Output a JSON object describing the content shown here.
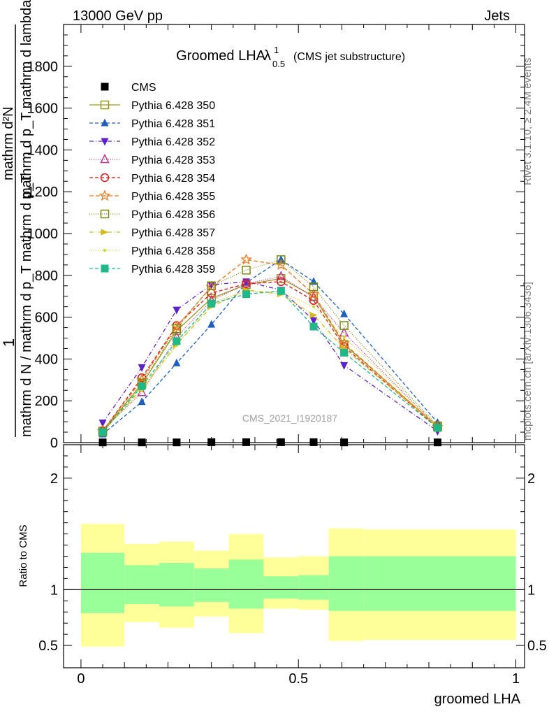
{
  "header": {
    "left": "13000 GeV pp",
    "right": "Jets"
  },
  "side_labels": {
    "rivet": "Rivet 3.1.10, ≥ 2.4M events",
    "mcplots": "mcplots.cern.ch [arXiv:1306.3436]"
  },
  "watermark": "CMS_2021_I1920187",
  "chart_data": [
    {
      "type": "line",
      "title": "Groomed LHA",
      "title_symbol": "λ",
      "title_sup": "1",
      "title_sub": "0.5",
      "subtitle": "(CMS jet substructure)",
      "ylabel_numerator": "mathrm d²N",
      "ylabel_denominator": "mathrm d p_T mathrm d lambda",
      "ylabel_one": "1",
      "ylabel_inner": "mathrm d N / mathrm d p_T mathrm d p_T",
      "xlim": [
        0,
        1
      ],
      "ylim": [
        0,
        2000
      ],
      "yticks": [
        0,
        200,
        400,
        600,
        800,
        1000,
        1200,
        1400,
        1600,
        1800
      ],
      "ytick_labels": [
        "0",
        "200",
        "400",
        "600",
        "800",
        "1000",
        "1200",
        "1400",
        "1600",
        "1800"
      ],
      "legend_position": "top-left",
      "x": [
        0.05,
        0.14,
        0.22,
        0.3,
        0.38,
        0.46,
        0.535,
        0.605,
        0.82
      ],
      "series": [
        {
          "name": "CMS",
          "color": "#000000",
          "dash": "none",
          "marker": "square-filled",
          "values": [
            1,
            1,
            1,
            2,
            2,
            2,
            2,
            1,
            1
          ]
        },
        {
          "name": "Pythia 6.428 350",
          "color": "#9a9a1a",
          "dash": "none",
          "marker": "square-open",
          "values": [
            55,
            280,
            535,
            690,
            755,
            785,
            700,
            470,
            75
          ]
        },
        {
          "name": "Pythia 6.428 351",
          "color": "#1f5fc0",
          "dash": "5,3",
          "marker": "triangle-up-filled",
          "values": [
            40,
            195,
            380,
            565,
            765,
            875,
            770,
            615,
            95
          ]
        },
        {
          "name": "Pythia 6.428 352",
          "color": "#5a22c8",
          "dash": "6,3,1,3",
          "marker": "triangle-down-filled",
          "values": [
            95,
            360,
            635,
            755,
            770,
            730,
            585,
            370,
            55
          ]
        },
        {
          "name": "Pythia 6.428 353",
          "color": "#c0308a",
          "dash": "1,2",
          "marker": "triangle-up-open",
          "values": [
            60,
            240,
            505,
            680,
            760,
            795,
            695,
            525,
            75
          ]
        },
        {
          "name": "Pythia 6.428 354",
          "color": "#e01818",
          "dash": "5,3",
          "marker": "circle-open",
          "values": [
            55,
            310,
            560,
            715,
            760,
            770,
            680,
            460,
            70
          ]
        },
        {
          "name": "Pythia 6.428 355",
          "color": "#f07818",
          "dash": "6,3",
          "marker": "star-open",
          "values": [
            55,
            300,
            555,
            745,
            875,
            850,
            710,
            475,
            75
          ]
        },
        {
          "name": "Pythia 6.428 356",
          "color": "#7a8a10",
          "dash": "1,2",
          "marker": "square-open",
          "values": [
            50,
            285,
            545,
            750,
            825,
            875,
            745,
            560,
            80
          ]
        },
        {
          "name": "Pythia 6.428 357",
          "color": "#d8b818",
          "dash": "6,3,1,3",
          "marker": "triangle-right-filled",
          "values": [
            50,
            260,
            470,
            650,
            730,
            710,
            610,
            450,
            75
          ]
        },
        {
          "name": "Pythia 6.428 358",
          "color": "#c4dc28",
          "dash": "1,2",
          "marker": "dot",
          "values": [
            55,
            250,
            465,
            670,
            725,
            720,
            650,
            505,
            80
          ]
        },
        {
          "name": "Pythia 6.428 359",
          "color": "#20b888",
          "dash": "5,3",
          "marker": "square-filled",
          "values": [
            50,
            270,
            485,
            665,
            710,
            725,
            555,
            430,
            70
          ]
        }
      ]
    },
    {
      "type": "area",
      "xlabel": "groomed LHA",
      "ylabel": "Ratio to CMS",
      "xlim": [
        -0.04,
        1.02
      ],
      "ylim": [
        0.3,
        2.3
      ],
      "xticks": [
        0,
        0.5,
        1
      ],
      "xtick_labels": [
        "0",
        "0.5",
        "1"
      ],
      "yticks": [
        0.5,
        1,
        2
      ],
      "ytick_labels": [
        "0.5",
        "1",
        "2"
      ],
      "bins": [
        {
          "x0": 0.0,
          "x1": 0.1,
          "inner": [
            0.79,
            1.33
          ],
          "outer": [
            0.49,
            1.59
          ]
        },
        {
          "x0": 0.1,
          "x1": 0.18,
          "inner": [
            0.87,
            1.22
          ],
          "outer": [
            0.71,
            1.41
          ]
        },
        {
          "x0": 0.18,
          "x1": 0.26,
          "inner": [
            0.85,
            1.24
          ],
          "outer": [
            0.66,
            1.43
          ]
        },
        {
          "x0": 0.26,
          "x1": 0.34,
          "inner": [
            0.89,
            1.19
          ],
          "outer": [
            0.76,
            1.35
          ]
        },
        {
          "x0": 0.34,
          "x1": 0.42,
          "inner": [
            0.83,
            1.27
          ],
          "outer": [
            0.61,
            1.5
          ]
        },
        {
          "x0": 0.42,
          "x1": 0.5,
          "inner": [
            0.92,
            1.12
          ],
          "outer": [
            0.83,
            1.29
          ]
        },
        {
          "x0": 0.5,
          "x1": 0.57,
          "inner": [
            0.91,
            1.13
          ],
          "outer": [
            0.82,
            1.3
          ]
        },
        {
          "x0": 0.57,
          "x1": 0.65,
          "inner": [
            0.81,
            1.3
          ],
          "outer": [
            0.54,
            1.55
          ]
        },
        {
          "x0": 0.65,
          "x1": 1.0,
          "inner": [
            0.81,
            1.3
          ],
          "outer": [
            0.55,
            1.54
          ]
        }
      ],
      "inner_color": "#99ff99",
      "outer_color": "#ffff99",
      "reference_value": 1
    }
  ]
}
